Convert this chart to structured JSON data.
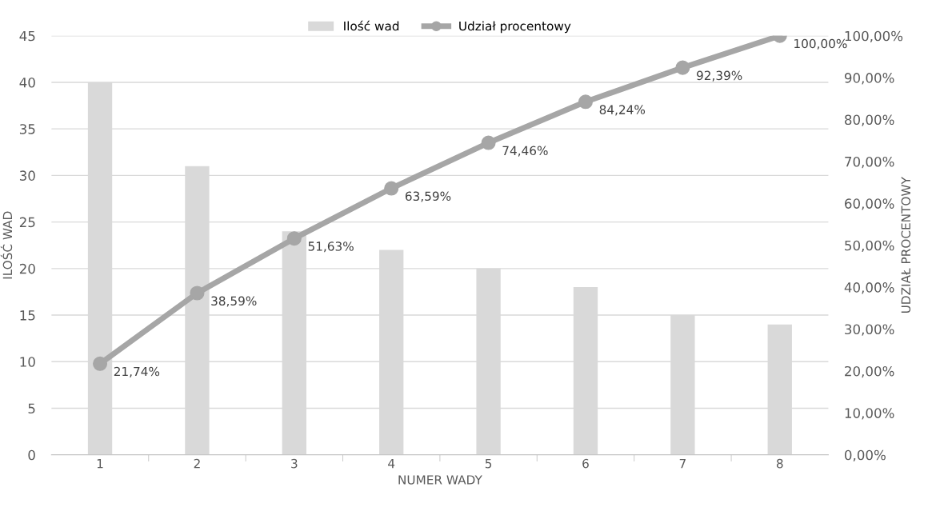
{
  "chart_data": {
    "type": "bar",
    "categories": [
      "1",
      "2",
      "3",
      "4",
      "5",
      "6",
      "7",
      "8"
    ],
    "xlabel": "NUMER WADY",
    "ylabel": "ILOŚĆ WAD",
    "y2label": "UDZIAŁ PROCENTOWY",
    "ylim": [
      0,
      45
    ],
    "yticks": [
      0,
      5,
      10,
      15,
      20,
      25,
      30,
      35,
      40,
      45
    ],
    "y2lim": [
      0,
      100
    ],
    "y2ticks": [
      {
        "value": 0,
        "label": "0,00%"
      },
      {
        "value": 10,
        "label": "10,00%"
      },
      {
        "value": 20,
        "label": "20,00%"
      },
      {
        "value": 30,
        "label": "30,00%"
      },
      {
        "value": 40,
        "label": "40,00%"
      },
      {
        "value": 50,
        "label": "50,00%"
      },
      {
        "value": 60,
        "label": "60,00%"
      },
      {
        "value": 70,
        "label": "70,00%"
      },
      {
        "value": 80,
        "label": "80,00%"
      },
      {
        "value": 90,
        "label": "90,00%"
      },
      {
        "value": 100,
        "label": "100,00%"
      }
    ],
    "grid": "y",
    "legend": "top",
    "series": [
      {
        "name": "Ilość wad",
        "color": "#d9d9d9",
        "values": [
          40,
          31,
          24,
          22,
          20,
          18,
          15,
          14
        ]
      },
      {
        "name": "Udział procentowy",
        "type": "line",
        "axis": "y2",
        "color": "#a6a6a6",
        "marker": "circle",
        "values": [
          21.74,
          38.59,
          51.63,
          63.59,
          74.46,
          84.24,
          92.39,
          100
        ],
        "value_labels": [
          "21,74%",
          "38,59%",
          "51,63%",
          "63,59%",
          "74,46%",
          "84,24%",
          "92,39%",
          "100,00%"
        ]
      }
    ]
  }
}
